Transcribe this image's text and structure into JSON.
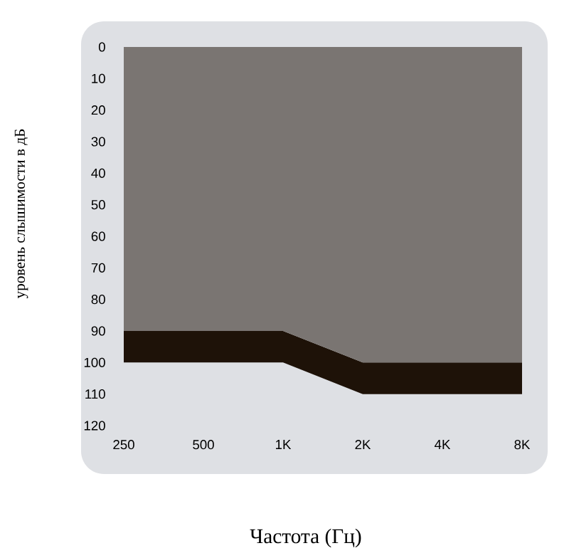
{
  "chart_data": {
    "type": "area",
    "stacked": true,
    "xlabel": "Частота (Гц)",
    "ylabel": "уровень слышимости в дБ",
    "categories": [
      "250",
      "500",
      "1K",
      "2K",
      "4K",
      "8K"
    ],
    "ylim": [
      120,
      0
    ],
    "yticks": [
      0,
      10,
      20,
      30,
      40,
      50,
      60,
      70,
      80,
      90,
      100,
      110,
      120
    ],
    "series": [
      {
        "color": "#7a7572",
        "values": [
          90,
          90,
          90,
          100,
          100,
          100
        ]
      },
      {
        "color": "#1e1208",
        "values": [
          10,
          10,
          10,
          10,
          10,
          10
        ]
      }
    ]
  }
}
